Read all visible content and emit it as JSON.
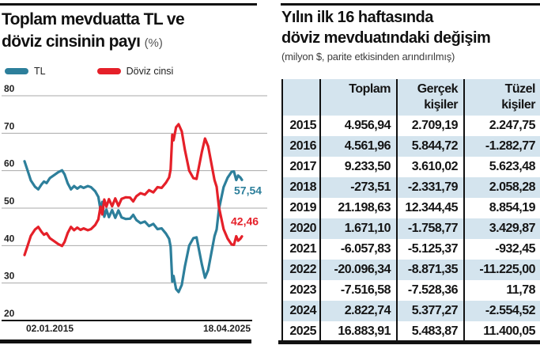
{
  "left_panel": {
    "title_line1": "Toplam mevduatta TL ve",
    "title_line2": "döviz cinsinin payı",
    "title_suffix": "(%)",
    "legend": [
      {
        "label": "TL",
        "color": "#2d7f9b"
      },
      {
        "label": "Döviz cinsi",
        "color": "#e52029"
      }
    ],
    "x_axis_labels": {
      "start": "02.01.2015",
      "end": "18.04.2025"
    },
    "end_labels": {
      "tl": "57,54",
      "fx": "42,46"
    }
  },
  "chart_data": {
    "type": "line",
    "title": "Toplam mevduatta TL ve döviz cinsinin payı (%)",
    "ylabel": "",
    "xlabel": "",
    "ylim": [
      20,
      80
    ],
    "yticks": [
      80,
      70,
      60,
      50,
      40,
      30,
      20
    ],
    "x_range": [
      2015.0,
      2025.3
    ],
    "x_tick_labels": [
      "02.01.2015",
      "18.04.2025"
    ],
    "grid": true,
    "legend_position": "top-left",
    "x": [
      2015.0,
      2015.15,
      2015.3,
      2015.5,
      2015.65,
      2015.8,
      2015.92,
      2016.05,
      2016.2,
      2016.4,
      2016.6,
      2016.78,
      2016.9,
      2017.05,
      2017.2,
      2017.35,
      2017.5,
      2017.65,
      2017.8,
      2018.0,
      2018.15,
      2018.35,
      2018.5,
      2018.6,
      2018.68,
      2018.78,
      2018.88,
      2019.0,
      2019.15,
      2019.3,
      2019.45,
      2019.6,
      2019.8,
      2020.0,
      2020.15,
      2020.3,
      2020.5,
      2020.7,
      2020.9,
      2021.1,
      2021.3,
      2021.5,
      2021.7,
      2021.85,
      2021.92,
      2022.0,
      2022.06,
      2022.18,
      2022.3,
      2022.45,
      2022.6,
      2022.8,
      2023.0,
      2023.15,
      2023.4,
      2023.55,
      2023.7,
      2023.85,
      2024.0,
      2024.1,
      2024.21,
      2024.43,
      2024.62,
      2024.81,
      2024.92,
      2025.03,
      2025.12,
      2025.22,
      2025.3
    ],
    "series": [
      {
        "name": "TL",
        "color": "#2d7f9b",
        "end_label": "57,54",
        "end_value": 57.54,
        "values": [
          62.5,
          60.0,
          57.4,
          55.7,
          55.0,
          56.3,
          57.1,
          56.7,
          58.0,
          58.8,
          59.6,
          60.1,
          59.0,
          56.6,
          55.0,
          55.9,
          55.2,
          55.8,
          55.4,
          55.9,
          55.6,
          54.5,
          53.0,
          49.6,
          51.7,
          47.7,
          49.6,
          47.6,
          49.5,
          47.4,
          49.4,
          47.5,
          47.1,
          47.2,
          48.2,
          46.8,
          46.0,
          46.4,
          45.2,
          45.8,
          44.4,
          44.6,
          43.2,
          41.8,
          39.7,
          30.4,
          31.9,
          28.4,
          27.6,
          29.5,
          34.5,
          40.0,
          42.0,
          42.2,
          35.0,
          31.4,
          33.5,
          38.0,
          42.5,
          44.3,
          49.7,
          55.6,
          58.1,
          59.7,
          59.8,
          57.5,
          58.7,
          58.2,
          57.54
        ]
      },
      {
        "name": "Döviz cinsi",
        "color": "#e52029",
        "end_label": "42,46",
        "end_value": 42.46,
        "values": [
          37.5,
          40.0,
          42.6,
          44.3,
          45.0,
          43.7,
          42.9,
          43.3,
          42.0,
          41.2,
          40.4,
          39.9,
          41.0,
          43.4,
          45.0,
          44.1,
          44.8,
          44.2,
          44.6,
          44.1,
          44.4,
          45.5,
          47.0,
          50.4,
          48.3,
          52.3,
          50.4,
          52.4,
          50.5,
          52.6,
          50.6,
          52.5,
          52.9,
          52.8,
          51.8,
          53.2,
          54.0,
          53.6,
          54.8,
          54.2,
          55.6,
          55.4,
          56.8,
          58.2,
          60.3,
          69.6,
          68.1,
          71.6,
          72.4,
          70.5,
          65.5,
          60.0,
          58.0,
          57.8,
          65.0,
          68.6,
          66.5,
          62.0,
          57.5,
          55.7,
          50.3,
          44.4,
          41.9,
          40.3,
          40.2,
          42.5,
          41.3,
          41.8,
          42.46
        ]
      }
    ]
  },
  "right_panel": {
    "title_line1": "Yılın ilk 16 haftasında",
    "title_line2": "döviz mevduatındaki değişim",
    "subtitle": "(milyon $, parite etkisinden arındırılmış)",
    "table": {
      "headers": [
        "",
        "Toplam",
        "Gerçek kişiler",
        "Tüzel kişiler"
      ],
      "rows": [
        {
          "year": "2015",
          "toplam": "4.956,94",
          "gercek": "2.709,19",
          "tuzel": "2.247,75"
        },
        {
          "year": "2016",
          "toplam": "4.561,96",
          "gercek": "5.844,72",
          "tuzel": "-1.282,77"
        },
        {
          "year": "2017",
          "toplam": "9.233,50",
          "gercek": "3.610,02",
          "tuzel": "5.623,48"
        },
        {
          "year": "2018",
          "toplam": "-273,51",
          "gercek": "-2.331,79",
          "tuzel": "2.058,28"
        },
        {
          "year": "2019",
          "toplam": "21.198,63",
          "gercek": "12.344,45",
          "tuzel": "8.854,19"
        },
        {
          "year": "2020",
          "toplam": "1.671,10",
          "gercek": "-1.758,77",
          "tuzel": "3.429,87"
        },
        {
          "year": "2021",
          "toplam": "-6.057,83",
          "gercek": "-5.125,37",
          "tuzel": "-932,45"
        },
        {
          "year": "2022",
          "toplam": "-20.096,34",
          "gercek": "-8.871,35",
          "tuzel": "-11.225,00"
        },
        {
          "year": "2023",
          "toplam": "-7.516,58",
          "gercek": "-7.528,36",
          "tuzel": "11,78"
        },
        {
          "year": "2024",
          "toplam": "2.822,74",
          "gercek": "5.377,27",
          "tuzel": "-2.554,52"
        },
        {
          "year": "2025",
          "toplam": "16.883,91",
          "gercek": "5.483,87",
          "tuzel": "11.400,05"
        }
      ]
    }
  },
  "colors": {
    "tl_line": "#2d7f9b",
    "fx_line": "#e52029",
    "row_alt_bg": "#d4e4ee",
    "grid": "#aaaaaa",
    "axis": "#111111",
    "text": "#1a1a1a",
    "subtitle_text": "#3c3c3c"
  }
}
